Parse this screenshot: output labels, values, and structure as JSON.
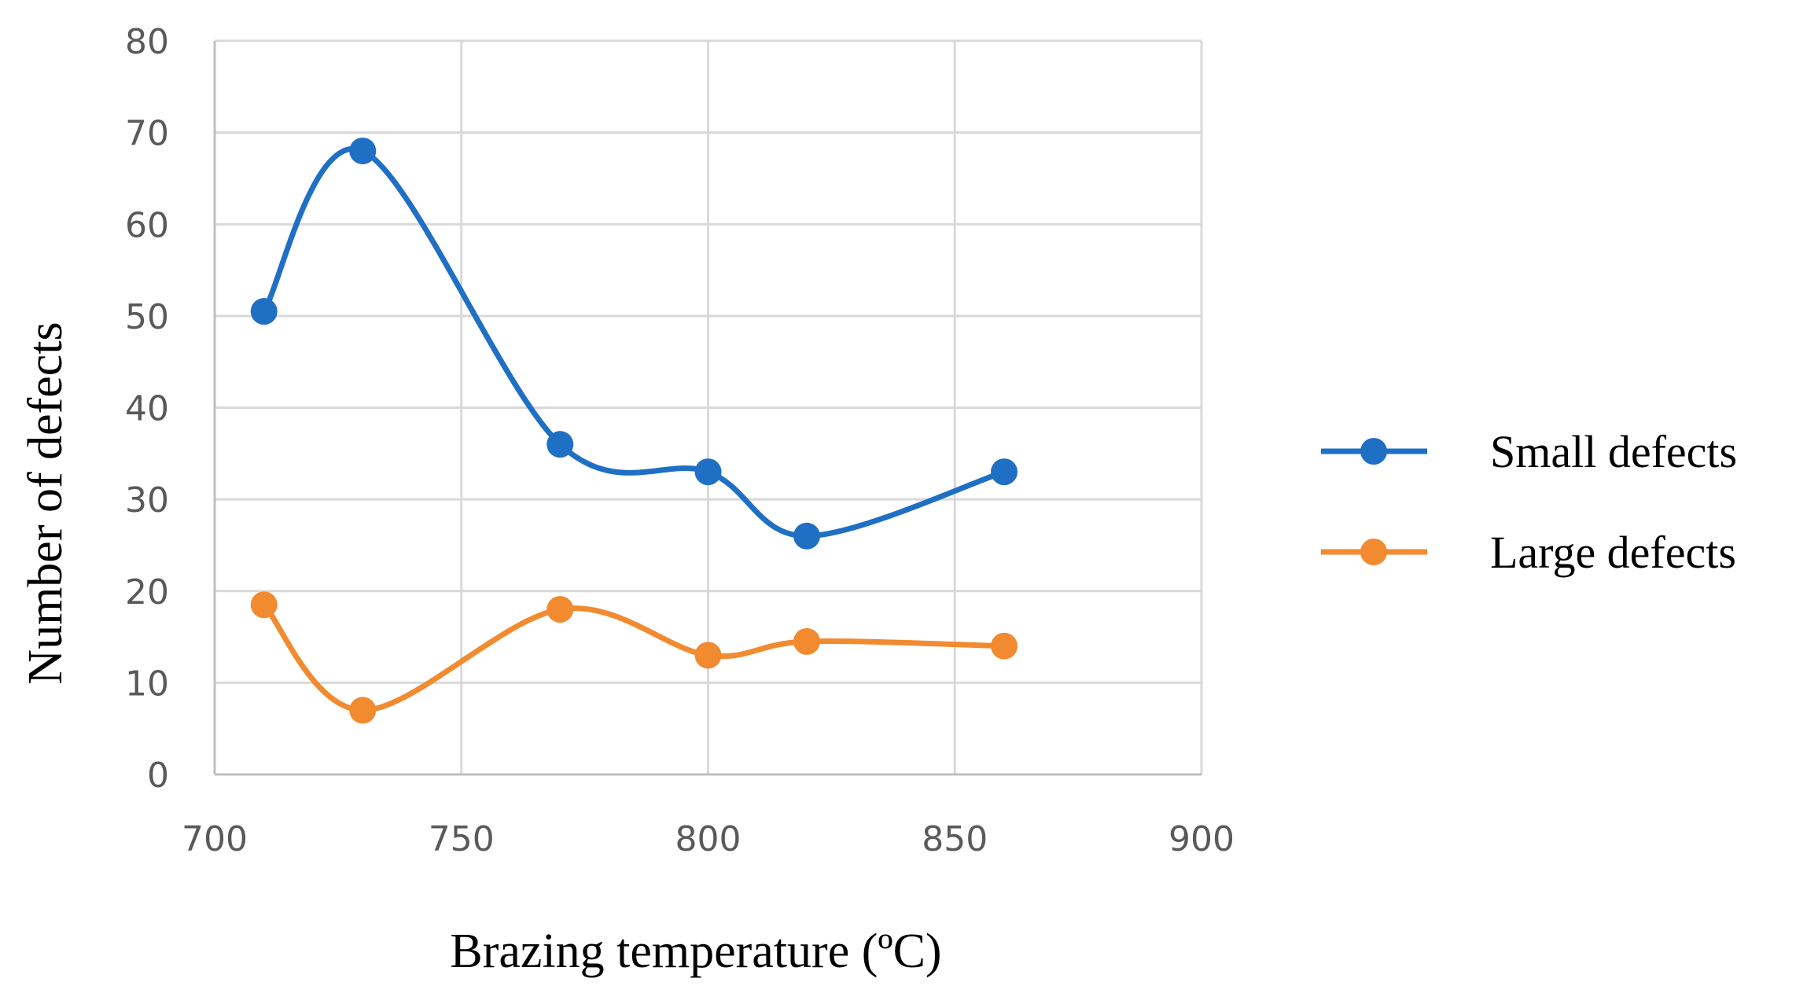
{
  "chart_data": {
    "type": "line",
    "title": "",
    "xlabel": "Brazing temperature (ºC)",
    "ylabel": "Number of defects",
    "xlim": [
      700,
      900
    ],
    "ylim": [
      0,
      80
    ],
    "x_ticks": [
      700,
      750,
      800,
      850,
      900
    ],
    "y_ticks": [
      0,
      10,
      20,
      30,
      40,
      50,
      60,
      70,
      80
    ],
    "grid": true,
    "smooth": true,
    "legend_position": "right",
    "series": [
      {
        "name": "Small defects",
        "color": "#1f6fc5",
        "x": [
          710,
          730,
          770,
          800,
          820,
          860
        ],
        "y": [
          50.5,
          68,
          36,
          33,
          26,
          33
        ]
      },
      {
        "name": "Large defects",
        "color": "#f28a30",
        "x": [
          710,
          730,
          770,
          800,
          820,
          860
        ],
        "y": [
          18.5,
          7,
          18,
          13,
          14.5,
          14
        ]
      }
    ]
  }
}
